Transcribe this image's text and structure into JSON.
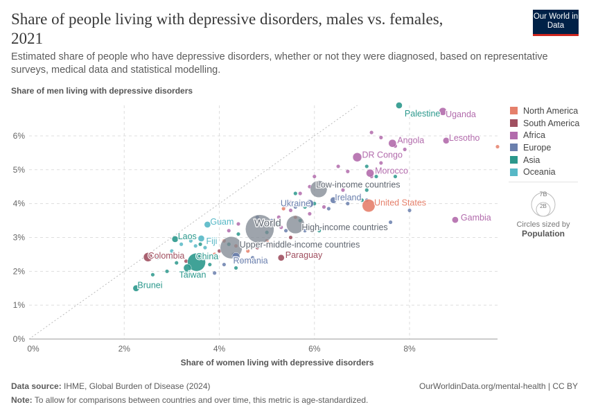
{
  "header": {
    "title": "Share of people living with depressive disorders, males vs. females, 2021",
    "subtitle": "Estimated share of people who have depressive disorders, whether or not they were diagnosed, based on representative surveys, medical data and statistical modelling.",
    "logo": "Our World in Data"
  },
  "footer": {
    "source_label": "Data source:",
    "source": "IHME, Global Burden of Disease (2024)",
    "url": "OurWorldinData.org/mental-health | CC BY",
    "note_label": "Note:",
    "note": "To allow for comparisons between countries and over time, this metric is age-standardized."
  },
  "size_legend": {
    "big": "7B",
    "small": "2B",
    "caption": "Circles sized by",
    "variable": "Population"
  },
  "chart_data": {
    "type": "scatter",
    "xlabel": "Share of women living with depressive disorders",
    "ylabel": "Share of men living with depressive disorders",
    "xlim": [
      0,
      9.85
    ],
    "ylim": [
      0,
      6.9
    ],
    "xticks": [
      "0%",
      "2%",
      "4%",
      "6%",
      "8%"
    ],
    "xtick_values": [
      0,
      2,
      4,
      6,
      8
    ],
    "yticks": [
      "0%",
      "1%",
      "2%",
      "3%",
      "4%",
      "5%",
      "6%"
    ],
    "ytick_values": [
      0,
      1,
      2,
      3,
      4,
      5,
      6
    ],
    "grid": true,
    "reference_line": "y = x",
    "legend_placement": "right",
    "regions": [
      {
        "name": "North America",
        "color": "#e5806b"
      },
      {
        "name": "South America",
        "color": "#a05060"
      },
      {
        "name": "Africa",
        "color": "#b26bac"
      },
      {
        "name": "Europe",
        "color": "#6a7fad"
      },
      {
        "name": "Asia",
        "color": "#2b988c"
      },
      {
        "name": "Oceania",
        "color": "#57b8c6"
      }
    ],
    "aggregate_color": "#7d8590",
    "labeled_points": [
      {
        "label": "Palestine",
        "x": 7.78,
        "y": 6.9,
        "region": "Asia",
        "size": 1
      },
      {
        "label": "Uganda",
        "x": 8.7,
        "y": 6.72,
        "region": "Africa",
        "size": 1.5
      },
      {
        "label": "Lesotho",
        "x": 8.77,
        "y": 5.86,
        "region": "Africa",
        "size": 1
      },
      {
        "label": "Angola",
        "x": 7.64,
        "y": 5.78,
        "region": "Africa",
        "size": 1.5
      },
      {
        "label": "DR Congo",
        "x": 6.9,
        "y": 5.37,
        "region": "Africa",
        "size": 2
      },
      {
        "label": "Morocco",
        "x": 7.17,
        "y": 4.9,
        "region": "Africa",
        "size": 1.5
      },
      {
        "label": "Low-income countries",
        "x": 6.09,
        "y": 4.43,
        "region": "aggregate",
        "size": 7
      },
      {
        "label": "Ukraine",
        "x": 5.9,
        "y": 4.0,
        "region": "Europe",
        "size": 1.5
      },
      {
        "label": "Ireland",
        "x": 6.4,
        "y": 4.1,
        "region": "Europe",
        "size": 1
      },
      {
        "label": "United States",
        "x": 7.14,
        "y": 3.94,
        "region": "North America",
        "size": 4
      },
      {
        "label": "Gambia",
        "x": 8.96,
        "y": 3.52,
        "region": "Africa",
        "size": 1
      },
      {
        "label": "World",
        "x": 4.85,
        "y": 3.25,
        "region": "aggregate",
        "size": 20
      },
      {
        "label": "High-income countries",
        "x": 5.6,
        "y": 3.38,
        "region": "aggregate",
        "size": 8
      },
      {
        "label": "Upper-middle-income countries",
        "x": 4.25,
        "y": 2.7,
        "region": "aggregate",
        "size": 12
      },
      {
        "label": "Guam",
        "x": 3.75,
        "y": 3.38,
        "region": "Oceania",
        "size": 1
      },
      {
        "label": "Laos",
        "x": 3.07,
        "y": 2.95,
        "region": "Asia",
        "size": 1
      },
      {
        "label": "Fiji",
        "x": 3.62,
        "y": 2.97,
        "region": "Oceania",
        "size": 1
      },
      {
        "label": "Colombia",
        "x": 2.5,
        "y": 2.42,
        "region": "South America",
        "size": 2
      },
      {
        "label": "China",
        "x": 3.52,
        "y": 2.27,
        "region": "Asia",
        "size": 8
      },
      {
        "label": "Romania",
        "x": 4.35,
        "y": 2.44,
        "region": "Europe",
        "size": 1.5
      },
      {
        "label": "Paraguay",
        "x": 5.3,
        "y": 2.4,
        "region": "South America",
        "size": 1
      },
      {
        "label": "Taiwan",
        "x": 3.33,
        "y": 2.1,
        "region": "Asia",
        "size": 1.5
      },
      {
        "label": "Brunei",
        "x": 2.25,
        "y": 1.5,
        "region": "Asia",
        "size": 1
      }
    ],
    "other_points": {
      "Africa": [
        [
          7.2,
          6.1
        ],
        [
          7.4,
          5.95
        ],
        [
          7.7,
          5.7
        ],
        [
          7.9,
          5.6
        ],
        [
          7.4,
          5.2
        ],
        [
          6.5,
          5.1
        ],
        [
          6.7,
          4.95
        ],
        [
          7.2,
          4.8
        ],
        [
          6.0,
          4.8
        ],
        [
          5.9,
          4.5
        ],
        [
          6.6,
          4.4
        ],
        [
          5.5,
          4.05
        ],
        [
          5.4,
          3.95
        ],
        [
          5.25,
          3.6
        ],
        [
          5.5,
          3.8
        ],
        [
          5.3,
          3.3
        ],
        [
          4.4,
          3.4
        ],
        [
          4.2,
          3.2
        ],
        [
          6.5,
          4.2
        ],
        [
          6.2,
          3.9
        ],
        [
          5.7,
          4.3
        ],
        [
          5.9,
          3.7
        ]
      ],
      "Asia": [
        [
          7.1,
          5.1
        ],
        [
          7.3,
          4.8
        ],
        [
          7.7,
          4.8
        ],
        [
          7.1,
          4.4
        ],
        [
          7.0,
          4.1
        ],
        [
          6.0,
          4.0
        ],
        [
          5.6,
          4.3
        ],
        [
          5.8,
          3.9
        ],
        [
          5.7,
          3.5
        ],
        [
          5.0,
          3.15
        ],
        [
          4.4,
          3.1
        ],
        [
          4.2,
          2.8
        ],
        [
          3.1,
          2.25
        ],
        [
          3.0,
          2.4
        ],
        [
          2.9,
          2.0
        ],
        [
          3.3,
          1.95
        ],
        [
          3.8,
          2.2
        ],
        [
          4.35,
          2.1
        ],
        [
          5.9,
          3.3
        ],
        [
          6.1,
          3.2
        ],
        [
          5.2,
          3.4
        ],
        [
          2.6,
          1.9
        ],
        [
          3.6,
          2.8
        ]
      ],
      "Europe": [
        [
          7.1,
          4.1
        ],
        [
          6.7,
          4.0
        ],
        [
          6.3,
          3.85
        ],
        [
          8.0,
          3.8
        ],
        [
          7.6,
          3.45
        ],
        [
          6.3,
          3.3
        ],
        [
          5.8,
          3.2
        ],
        [
          5.1,
          3.5
        ],
        [
          4.0,
          3.45
        ],
        [
          4.3,
          2.5
        ],
        [
          4.7,
          2.4
        ],
        [
          4.5,
          2.3
        ],
        [
          4.1,
          2.2
        ],
        [
          3.9,
          1.95
        ],
        [
          5.6,
          3.9
        ],
        [
          4.8,
          3.6
        ],
        [
          5.4,
          3.2
        ]
      ],
      "North America": [
        [
          9.85,
          5.68
        ],
        [
          5.35,
          3.85
        ],
        [
          5.6,
          3.6
        ],
        [
          4.1,
          2.9
        ],
        [
          4.35,
          2.75
        ],
        [
          3.9,
          2.5
        ],
        [
          5.0,
          2.9
        ],
        [
          4.6,
          2.6
        ]
      ],
      "South America": [
        [
          5.1,
          2.8
        ],
        [
          4.8,
          2.7
        ],
        [
          4.6,
          2.3
        ],
        [
          5.5,
          3.0
        ],
        [
          3.3,
          2.3
        ],
        [
          4.0,
          2.6
        ]
      ],
      "Oceania": [
        [
          2.7,
          2.4
        ],
        [
          3.2,
          2.8
        ],
        [
          3.4,
          2.9
        ],
        [
          3.5,
          2.75
        ],
        [
          3.0,
          2.6
        ],
        [
          3.7,
          2.7
        ]
      ]
    }
  }
}
